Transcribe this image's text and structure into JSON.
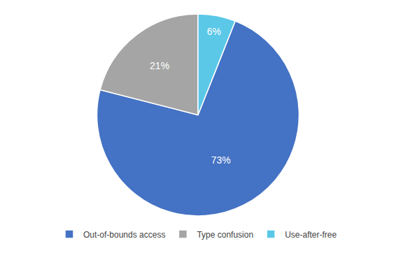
{
  "chart_data": {
    "type": "pie",
    "categories": [
      "Out-of-bounds access",
      "Type confusion",
      "Use-after-free"
    ],
    "values": [
      73,
      21,
      6
    ],
    "value_labels": [
      "73%",
      "21%",
      "6%"
    ],
    "colors": [
      "#4472C4",
      "#A5A5A5",
      "#5BC8E8"
    ],
    "data_labels": true,
    "legend": "bottom"
  }
}
